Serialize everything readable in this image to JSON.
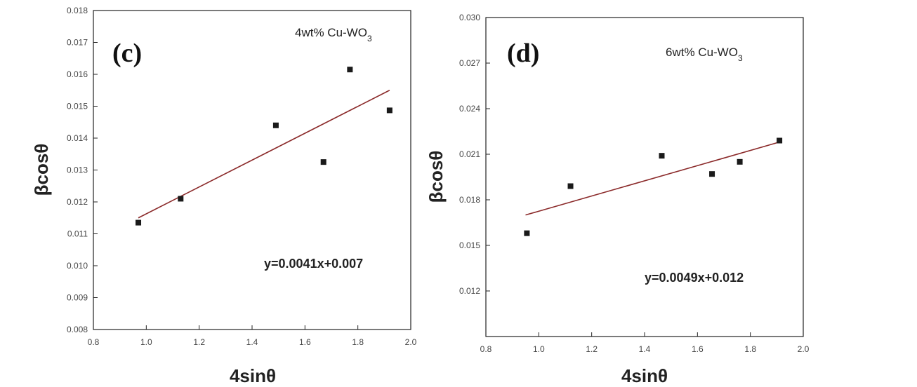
{
  "chart_data": [
    {
      "type": "scatter",
      "panel_label": "(c)",
      "sample_label": "4wt% Cu-WO",
      "sample_subscript": "3",
      "equation": "y=0.0041x+0.007",
      "xlabel": "4sinθ",
      "ylabel": "βcosθ",
      "xlim": [
        0.8,
        2.0
      ],
      "ylim": [
        0.008,
        0.018
      ],
      "xticks": [
        "0.8",
        "1.0",
        "1.2",
        "1.4",
        "1.6",
        "1.8",
        "2.0"
      ],
      "yticks": [
        "0.008",
        "0.009",
        "0.010",
        "0.011",
        "0.012",
        "0.013",
        "0.014",
        "0.015",
        "0.016",
        "0.017",
        "0.018"
      ],
      "points": [
        {
          "x": 0.97,
          "y": 0.01135
        },
        {
          "x": 1.13,
          "y": 0.0121
        },
        {
          "x": 1.49,
          "y": 0.0144
        },
        {
          "x": 1.67,
          "y": 0.01325
        },
        {
          "x": 1.77,
          "y": 0.01615
        },
        {
          "x": 1.92,
          "y": 0.01487
        }
      ],
      "fit_line": {
        "x": [
          0.97,
          1.92
        ],
        "y": [
          0.0115,
          0.0155
        ]
      },
      "marker_color": "#1a1a1a",
      "line_color": "#8b2a2a"
    },
    {
      "type": "scatter",
      "panel_label": "(d)",
      "sample_label": "6wt% Cu-WO",
      "sample_subscript": "3",
      "equation": "y=0.0049x+0.012",
      "xlabel": "4sinθ",
      "ylabel": "βcosθ",
      "xlim": [
        0.8,
        2.0
      ],
      "ylim": [
        0.009,
        0.03
      ],
      "xticks": [
        "0.8",
        "1.0",
        "1.2",
        "1.4",
        "1.6",
        "1.8",
        "2.0"
      ],
      "yticks": [
        "0.012",
        "0.015",
        "0.018",
        "0.021",
        "0.024",
        "0.027",
        "0.030"
      ],
      "points": [
        {
          "x": 0.955,
          "y": 0.0158
        },
        {
          "x": 1.12,
          "y": 0.0189
        },
        {
          "x": 1.465,
          "y": 0.0209
        },
        {
          "x": 1.655,
          "y": 0.0197
        },
        {
          "x": 1.76,
          "y": 0.0205
        },
        {
          "x": 1.91,
          "y": 0.0219
        }
      ],
      "fit_line": {
        "x": [
          0.95,
          1.91
        ],
        "y": [
          0.017,
          0.0218
        ]
      },
      "marker_color": "#1a1a1a",
      "line_color": "#8b2a2a"
    }
  ]
}
